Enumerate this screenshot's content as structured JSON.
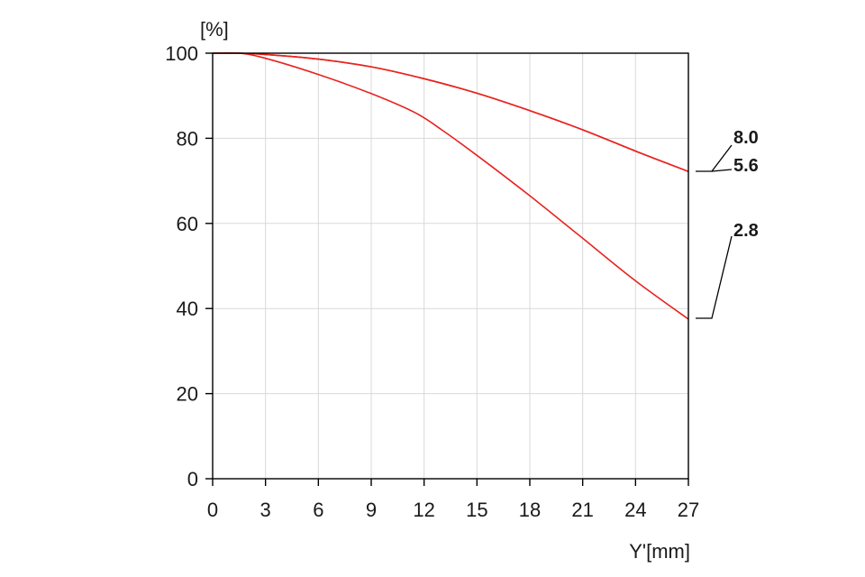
{
  "chart_data": {
    "type": "line",
    "ylabel": "[%]",
    "xlabel": "Y'[mm]",
    "xlim": [
      0,
      27
    ],
    "ylim": [
      0,
      100
    ],
    "xticks": [
      0,
      3,
      6,
      9,
      12,
      15,
      18,
      21,
      24,
      27
    ],
    "yticks": [
      0,
      20,
      40,
      60,
      80,
      100
    ],
    "grid": true,
    "line_color": "#e8231f",
    "series": [
      {
        "name": "2.8",
        "points": [
          [
            0,
            100
          ],
          [
            1.5,
            100
          ],
          [
            3,
            98.8
          ],
          [
            6,
            95
          ],
          [
            9,
            90.5
          ],
          [
            11.5,
            86
          ],
          [
            13,
            82
          ],
          [
            15,
            76
          ],
          [
            18,
            66.5
          ],
          [
            21,
            56.5
          ],
          [
            24,
            46.5
          ],
          [
            27,
            37.5
          ]
        ]
      },
      {
        "name": "5.6",
        "points": [
          [
            0,
            100
          ],
          [
            1.5,
            100
          ],
          [
            3,
            99.7
          ],
          [
            6,
            98.6
          ],
          [
            9,
            96.8
          ],
          [
            12,
            94
          ],
          [
            15,
            90.6
          ],
          [
            18,
            86.5
          ],
          [
            21,
            82
          ],
          [
            24,
            77
          ],
          [
            27,
            72.2
          ]
        ]
      },
      {
        "name": "8.0",
        "points": [
          [
            0,
            100
          ],
          [
            1.5,
            100
          ],
          [
            3,
            99.7
          ],
          [
            6,
            98.6
          ],
          [
            9,
            96.8
          ],
          [
            12,
            94
          ],
          [
            15,
            90.6
          ],
          [
            18,
            86.5
          ],
          [
            21,
            82
          ],
          [
            24,
            77
          ],
          [
            27,
            72.2
          ]
        ]
      }
    ],
    "series_labels": [
      {
        "text": "8.0",
        "series": "8.0"
      },
      {
        "text": "5.6",
        "series": "5.6"
      },
      {
        "text": "2.8",
        "series": "2.8"
      }
    ]
  }
}
